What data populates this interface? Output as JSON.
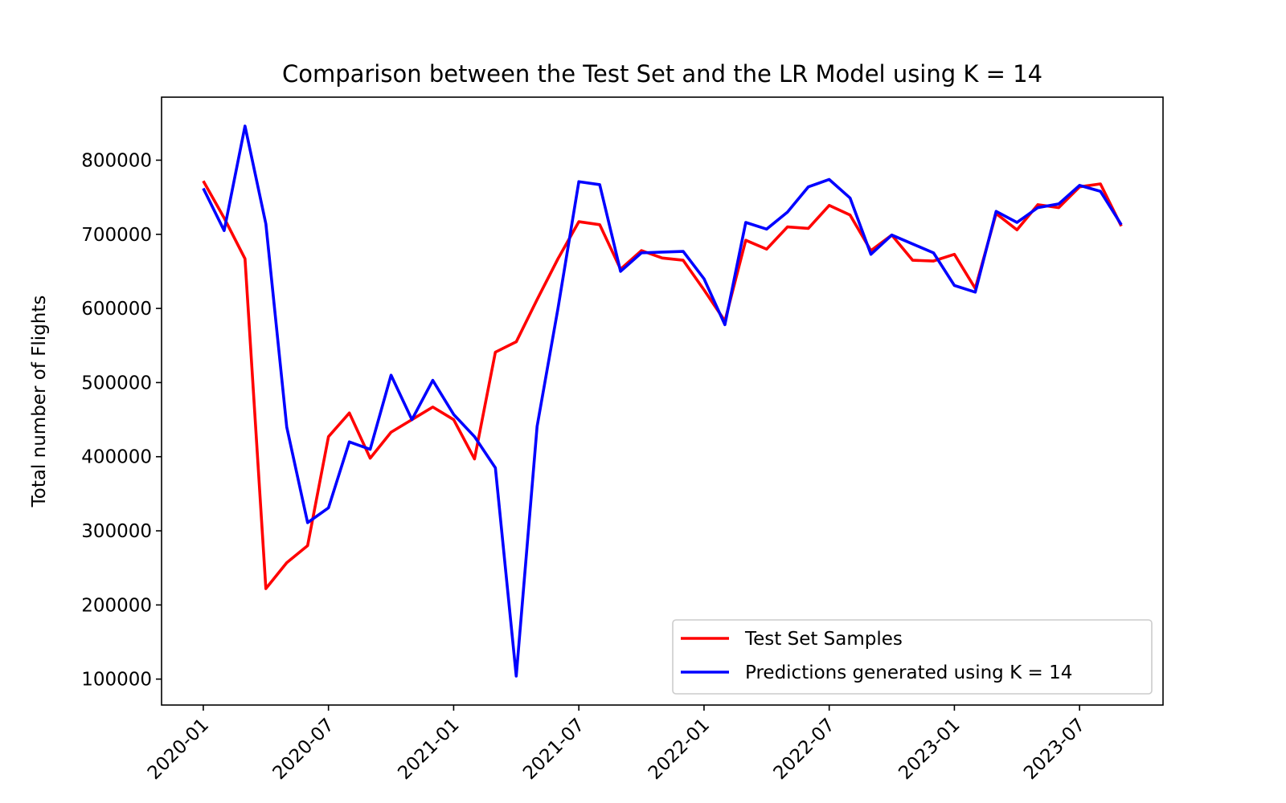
{
  "chart_data": {
    "type": "line",
    "title": "Comparison between the Test Set and the LR Model using K = 14",
    "xlabel": "",
    "ylabel": "Total number of Flights",
    "x": [
      "2020-01",
      "2020-02",
      "2020-03",
      "2020-04",
      "2020-05",
      "2020-06",
      "2020-07",
      "2020-08",
      "2020-09",
      "2020-10",
      "2020-11",
      "2020-12",
      "2021-01",
      "2021-02",
      "2021-03",
      "2021-04",
      "2021-05",
      "2021-06",
      "2021-07",
      "2021-08",
      "2021-09",
      "2021-10",
      "2021-11",
      "2021-12",
      "2022-01",
      "2022-02",
      "2022-03",
      "2022-04",
      "2022-05",
      "2022-06",
      "2022-07",
      "2022-08",
      "2022-09",
      "2022-10",
      "2022-11",
      "2022-12",
      "2023-01",
      "2023-02",
      "2023-03",
      "2023-04",
      "2023-05",
      "2023-06",
      "2023-07",
      "2023-08",
      "2023-09"
    ],
    "x_ticks": [
      "2020-01",
      "2020-07",
      "2021-01",
      "2021-07",
      "2022-01",
      "2022-07",
      "2023-01",
      "2023-07"
    ],
    "y_ticks": [
      100000,
      200000,
      300000,
      400000,
      500000,
      600000,
      700000,
      800000
    ],
    "ylim": [
      65000,
      885000
    ],
    "xlim": [
      "2019-11",
      "2023-11"
    ],
    "legend_position": "lower-right",
    "grid": false,
    "series": [
      {
        "name": "Test Set Samples",
        "color": "#ff0000",
        "values": [
          772000,
          722000,
          667000,
          222000,
          257000,
          280000,
          427000,
          459000,
          398000,
          433000,
          450000,
          467000,
          450000,
          397000,
          541000,
          555000,
          612000,
          667000,
          717000,
          713000,
          653000,
          678000,
          668000,
          665000,
          625000,
          583000,
          692000,
          680000,
          710000,
          708000,
          739000,
          726000,
          678000,
          699000,
          665000,
          664000,
          673000,
          627000,
          728000,
          706000,
          740000,
          736000,
          764000,
          768000,
          711000
        ]
      },
      {
        "name": "Predictions generated using K = 14",
        "color": "#0000ff",
        "values": [
          762000,
          705000,
          846000,
          714000,
          440000,
          311000,
          331000,
          420000,
          410000,
          510000,
          450000,
          503000,
          457000,
          427000,
          385000,
          104000,
          441000,
          600000,
          771000,
          767000,
          650000,
          675000,
          676000,
          677000,
          640000,
          578000,
          716000,
          707000,
          730000,
          764000,
          774000,
          749000,
          673000,
          699000,
          687000,
          675000,
          631000,
          622000,
          731000,
          716000,
          736000,
          741000,
          766000,
          758000,
          713000
        ]
      }
    ]
  }
}
